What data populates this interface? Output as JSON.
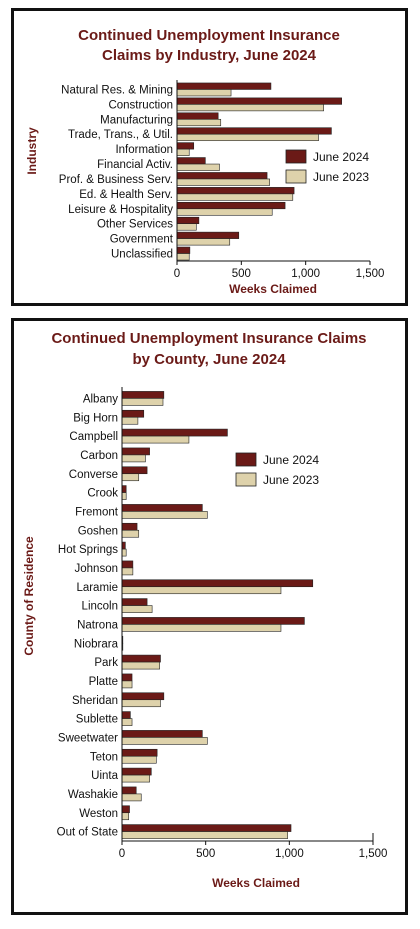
{
  "colors": {
    "june2024": "#6b1a17",
    "june2023": "#ded2ab",
    "title": "#6b1a17"
  },
  "chart_data": [
    {
      "type": "bar",
      "orientation": "horizontal",
      "title_lines": [
        "Continued Unemployment Insurance",
        "Claims by Industry, June 2024"
      ],
      "xlabel": "Weeks Claimed",
      "ylabel": "Industry",
      "xlim": [
        0,
        1500
      ],
      "xticks": [
        "0",
        "500",
        "1,000",
        "1,500"
      ],
      "legend_position": "right",
      "categories": [
        "Natural Res. & Mining",
        "Construction",
        "Manufacturing",
        "Trade, Trans., & Util.",
        "Information",
        "Financial Activ.",
        "Prof. & Business Serv.",
        "Ed. & Health Serv.",
        "Leisure & Hospitality",
        "Other Services",
        "Government",
        "Unclassified"
      ],
      "series": [
        {
          "name": "June 2024",
          "values": [
            730,
            1280,
            320,
            1200,
            130,
            220,
            700,
            910,
            840,
            170,
            480,
            100
          ]
        },
        {
          "name": "June 2023",
          "values": [
            420,
            1140,
            340,
            1100,
            95,
            330,
            720,
            900,
            740,
            150,
            410,
            95
          ]
        }
      ]
    },
    {
      "type": "bar",
      "orientation": "horizontal",
      "title_lines": [
        "Continued Unemployment Insurance Claims",
        "by County, June 2024"
      ],
      "xlabel": "Weeks Claimed",
      "ylabel": "County of Residence",
      "xlim": [
        0,
        1500
      ],
      "xticks": [
        "0",
        "500",
        "1,000",
        "1,500"
      ],
      "legend_position": "right",
      "categories": [
        "Albany",
        "Big Horn",
        "Campbell",
        "Carbon",
        "Converse",
        "Crook",
        "Fremont",
        "Goshen",
        "Hot Springs",
        "Johnson",
        "Laramie",
        "Lincoln",
        "Natrona",
        "Niobrara",
        "Park",
        "Platte",
        "Sheridan",
        "Sublette",
        "Sweetwater",
        "Teton",
        "Uinta",
        "Washakie",
        "Weston",
        "Out of State"
      ],
      "series": [
        {
          "name": "June 2024",
          "values": [
            250,
            130,
            630,
            165,
            150,
            25,
            480,
            90,
            20,
            65,
            1140,
            150,
            1090,
            5,
            230,
            60,
            250,
            50,
            480,
            210,
            175,
            85,
            45,
            1010
          ]
        },
        {
          "name": "June 2023",
          "values": [
            245,
            95,
            400,
            140,
            100,
            25,
            510,
            100,
            25,
            65,
            950,
            180,
            950,
            5,
            225,
            60,
            230,
            60,
            510,
            205,
            165,
            115,
            40,
            990
          ]
        }
      ]
    }
  ]
}
